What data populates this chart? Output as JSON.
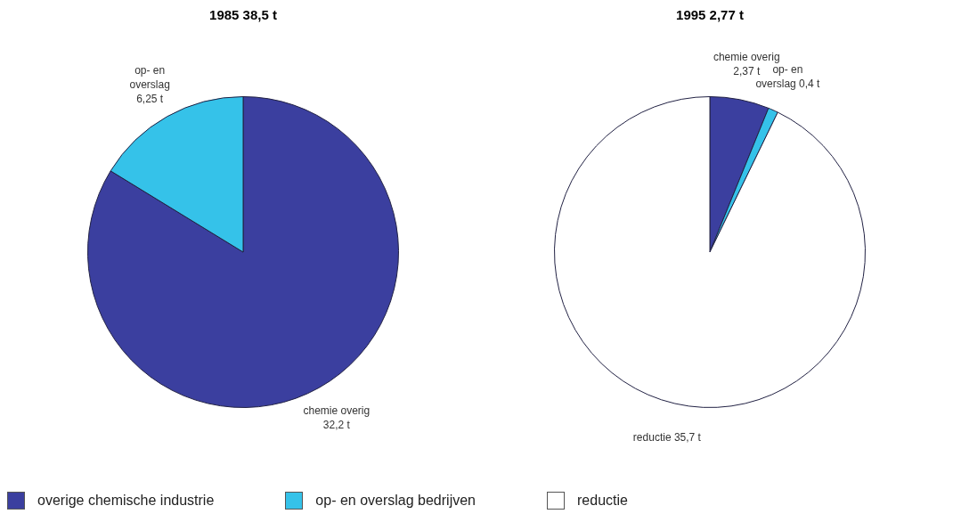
{
  "chart_data": [
    {
      "type": "pie",
      "title": "1985 38,5 t",
      "categories": [
        "chemie overig",
        "op- en\noverslag"
      ],
      "values": [
        32.2,
        6.25
      ],
      "colors": [
        "#3b3f9f",
        "#35c2e9"
      ],
      "value_labels": [
        "32,2 t",
        "6,25 t"
      ],
      "legend": false
    },
    {
      "type": "pie",
      "title": "1995 2,77 t",
      "categories": [
        "overige chemische industrie",
        "op- en overslag bedrijven",
        "reductie"
      ],
      "values": [
        2.37,
        0.4,
        35.7
      ],
      "colors": [
        "#3b3f9f",
        "#35c2e9",
        "#ffffff"
      ],
      "value_labels": [
        "chemie overig\n2,37 t",
        "op- en\noverslag 0,4 t",
        "reductie 35,7 t"
      ],
      "legend": "bottom"
    }
  ]
}
